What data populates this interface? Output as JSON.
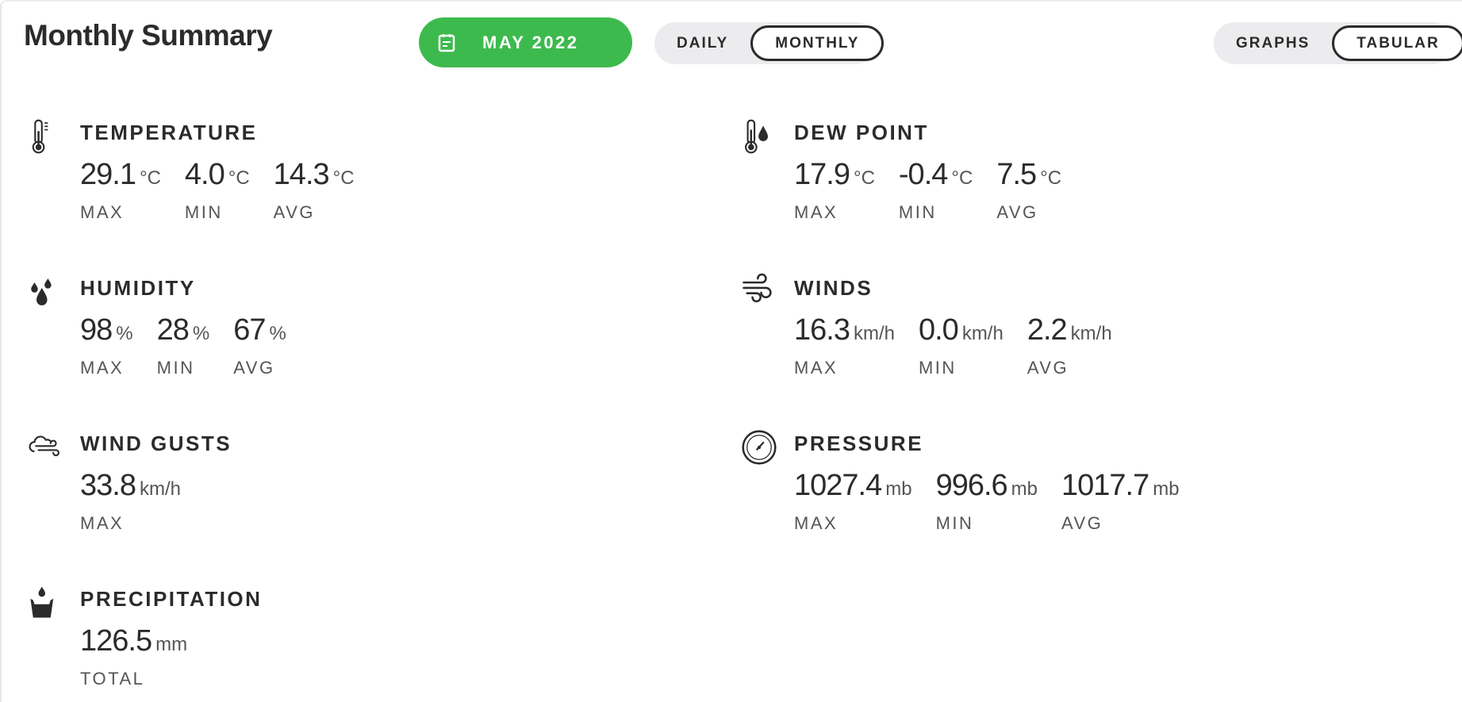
{
  "header": {
    "title": "Monthly Summary",
    "date_button": "MAY 2022",
    "accent_color": "#3dba4e",
    "period_toggle": [
      {
        "label": "DAILY",
        "active": false
      },
      {
        "label": "MONTHLY",
        "active": true
      }
    ],
    "view_toggle": [
      {
        "label": "GRAPHS",
        "active": false
      },
      {
        "label": "TABULAR",
        "active": true
      }
    ]
  },
  "metrics": [
    {
      "name": "TEMPERATURE",
      "icon": "thermometer-icon",
      "stats": [
        {
          "value": "29.1",
          "unit": "°C",
          "label": "MAX"
        },
        {
          "value": "4.0",
          "unit": "°C",
          "label": "MIN"
        },
        {
          "value": "14.3",
          "unit": "°C",
          "label": "AVG"
        }
      ]
    },
    {
      "name": "DEW POINT",
      "icon": "dew-point-icon",
      "stats": [
        {
          "value": "17.9",
          "unit": "°C",
          "label": "MAX"
        },
        {
          "value": "-0.4",
          "unit": "°C",
          "label": "MIN"
        },
        {
          "value": "7.5",
          "unit": "°C",
          "label": "AVG"
        }
      ]
    },
    {
      "name": "HUMIDITY",
      "icon": "humidity-drops-icon",
      "stats": [
        {
          "value": "98",
          "unit": "%",
          "label": "MAX"
        },
        {
          "value": "28",
          "unit": "%",
          "label": "MIN"
        },
        {
          "value": "67",
          "unit": "%",
          "label": "AVG"
        }
      ]
    },
    {
      "name": "WINDS",
      "icon": "wind-icon",
      "stats": [
        {
          "value": "16.3",
          "unit": "km/h",
          "label": "MAX"
        },
        {
          "value": "0.0",
          "unit": "km/h",
          "label": "MIN"
        },
        {
          "value": "2.2",
          "unit": "km/h",
          "label": "AVG"
        }
      ]
    },
    {
      "name": "WIND GUSTS",
      "icon": "wind-gust-cloud-icon",
      "stats": [
        {
          "value": "33.8",
          "unit": "km/h",
          "label": "MAX"
        }
      ]
    },
    {
      "name": "PRESSURE",
      "icon": "pressure-gauge-icon",
      "stats": [
        {
          "value": "1027.4",
          "unit": "mb",
          "label": "MAX"
        },
        {
          "value": "996.6",
          "unit": "mb",
          "label": "MIN"
        },
        {
          "value": "1017.7",
          "unit": "mb",
          "label": "AVG"
        }
      ]
    },
    {
      "name": "PRECIPITATION",
      "icon": "rain-bucket-icon",
      "stats": [
        {
          "value": "126.5",
          "unit": "mm",
          "label": "TOTAL"
        }
      ]
    }
  ]
}
